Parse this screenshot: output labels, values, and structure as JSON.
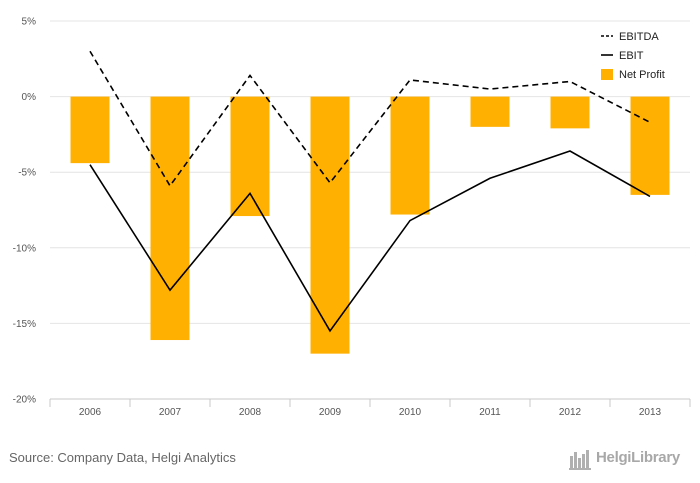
{
  "chart_data": {
    "type": "bar",
    "categories": [
      "2006",
      "2007",
      "2008",
      "2009",
      "2010",
      "2011",
      "2012",
      "2013"
    ],
    "y_ticks": [
      "5%",
      "0%",
      "-5%",
      "-10%",
      "-15%",
      "-20%"
    ],
    "y_tick_values": [
      5,
      0,
      -5,
      -10,
      -15,
      -20
    ],
    "ylim": [
      -20,
      5
    ],
    "grid": true,
    "legend_position": "top-right",
    "series": [
      {
        "name": "EBITDA",
        "type": "line",
        "style": "dashed",
        "color": "#000000",
        "values": [
          3.0,
          -5.9,
          1.4,
          -5.7,
          1.1,
          0.5,
          1.0,
          -1.7
        ]
      },
      {
        "name": "EBIT",
        "type": "line",
        "style": "solid",
        "color": "#000000",
        "values": [
          -4.5,
          -12.8,
          -6.4,
          -15.5,
          -8.2,
          -5.4,
          -3.6,
          -6.6
        ]
      },
      {
        "name": "Net Profit",
        "type": "bar",
        "color": "#FFB000",
        "values": [
          -4.4,
          -16.1,
          -7.9,
          -17.0,
          -7.8,
          -2.0,
          -2.1,
          -6.5
        ]
      }
    ]
  },
  "footer": {
    "source": "Source: Company Data, Helgi Analytics",
    "logo_text": "HelgiLibrary"
  }
}
